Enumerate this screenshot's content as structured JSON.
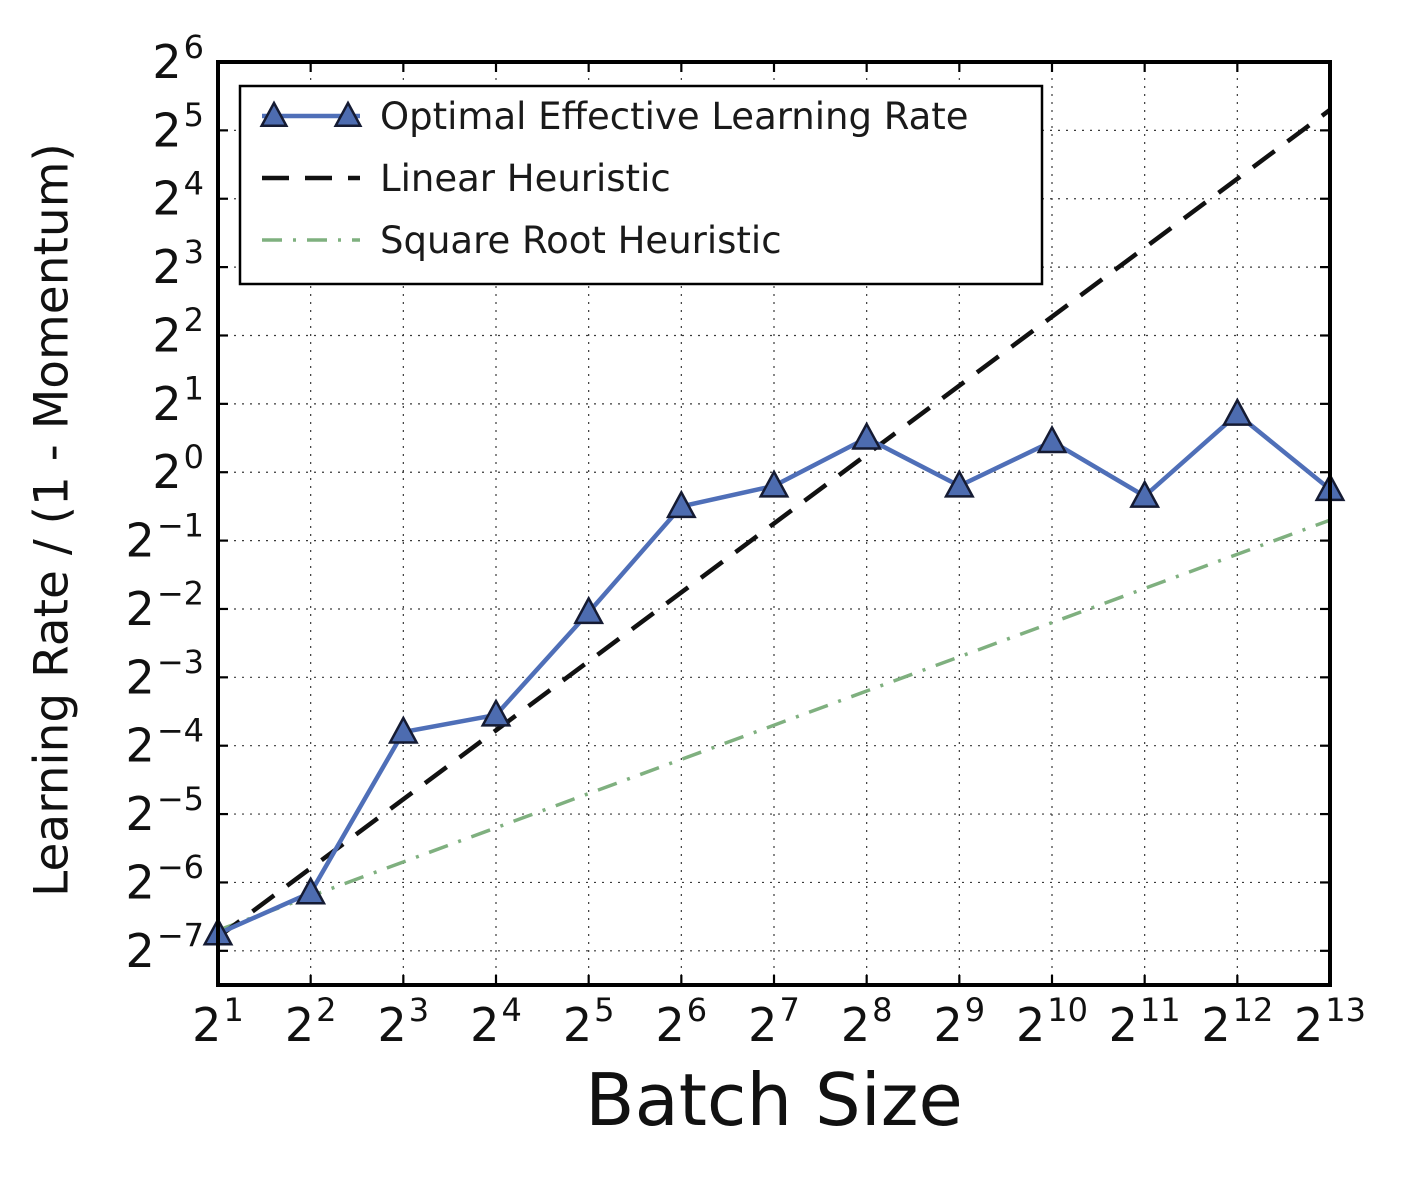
{
  "figure": {
    "background": "#ffffff",
    "spine_color": "#000000",
    "grid_color": "#3a3a3a"
  },
  "chart_data": {
    "type": "line",
    "title": "",
    "xlabel": "Batch Size",
    "ylabel": "Learning Rate / (1 - Momentum)",
    "x_scale": "log2",
    "y_scale": "log2",
    "xlim": [
      1,
      13
    ],
    "ylim": [
      -7.5,
      6
    ],
    "x_tick_exponents": [
      1,
      2,
      3,
      4,
      5,
      6,
      7,
      8,
      9,
      10,
      11,
      12,
      13
    ],
    "y_tick_exponents": [
      6,
      5,
      4,
      3,
      2,
      1,
      0,
      -1,
      -2,
      -3,
      -4,
      -5,
      -6,
      -7
    ],
    "grid": "dotted",
    "legend_position": "upper-left",
    "series": [
      {
        "name": "Optimal Effective Learning Rate",
        "style": "solid",
        "marker": "triangle",
        "color": "#4f6fb8",
        "marker_fill": "#4d6cb0",
        "marker_edge": "#151b33",
        "line_width": 4.5,
        "x": [
          1,
          2,
          3,
          4,
          5,
          6,
          7,
          8,
          9,
          10,
          11,
          12,
          13
        ],
        "y_exponent": [
          -6.75,
          -6.15,
          -3.8,
          -3.55,
          -2.05,
          -0.5,
          -0.2,
          0.5,
          -0.2,
          0.45,
          -0.35,
          0.85,
          -0.25
        ]
      },
      {
        "name": "Linear Heuristic",
        "style": "dashed",
        "marker": "none",
        "color": "#111111",
        "line_width": 4.5,
        "x": [
          1,
          13
        ],
        "y_exponent": [
          -6.8,
          5.3
        ]
      },
      {
        "name": "Square Root Heuristic",
        "style": "dashdot",
        "marker": "none",
        "color": "#7fb07f",
        "line_width": 3.5,
        "x": [
          1,
          13
        ],
        "y_exponent": [
          -6.7,
          -0.7
        ]
      }
    ]
  }
}
